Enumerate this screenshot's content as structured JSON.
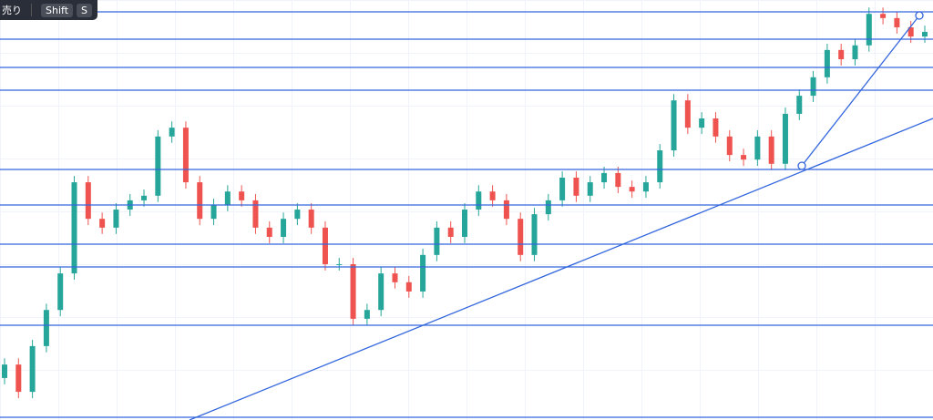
{
  "toolbar": {
    "label": "売り",
    "keys": [
      "Shift",
      "S"
    ]
  },
  "chart_data": {
    "type": "candlestick",
    "ylim": [
      0,
      100
    ],
    "up_color": "#26a69a",
    "down_color": "#ef5350",
    "candles": [
      [
        10.0,
        14.7,
        8.5,
        13.2
      ],
      [
        13.2,
        14.7,
        5.2,
        6.7
      ],
      [
        6.7,
        19.1,
        5.2,
        17.6
      ],
      [
        17.6,
        27.7,
        16.1,
        26.2
      ],
      [
        26.2,
        36.4,
        24.7,
        34.9
      ],
      [
        34.9,
        58.1,
        33.4,
        56.6
      ],
      [
        56.6,
        58.1,
        46.4,
        47.9
      ],
      [
        47.9,
        49.4,
        44.3,
        45.8
      ],
      [
        45.8,
        51.6,
        44.3,
        50.1
      ],
      [
        50.1,
        53.8,
        48.6,
        52.3
      ],
      [
        52.3,
        54.9,
        50.8,
        53.4
      ],
      [
        53.4,
        69.0,
        51.9,
        67.5
      ],
      [
        67.5,
        71.1,
        66.0,
        69.6
      ],
      [
        69.6,
        71.1,
        55.1,
        56.6
      ],
      [
        56.6,
        58.1,
        46.4,
        47.9
      ],
      [
        47.9,
        52.7,
        46.4,
        51.2
      ],
      [
        51.2,
        55.9,
        49.7,
        54.4
      ],
      [
        54.4,
        55.9,
        50.8,
        52.3
      ],
      [
        52.3,
        53.8,
        44.3,
        45.8
      ],
      [
        45.8,
        47.3,
        42.1,
        43.6
      ],
      [
        43.6,
        49.4,
        42.1,
        47.9
      ],
      [
        47.9,
        51.6,
        46.4,
        50.1
      ],
      [
        50.1,
        51.6,
        44.3,
        45.8
      ],
      [
        45.8,
        47.3,
        35.6,
        37.1
      ],
      [
        37.1,
        38.6,
        35.6,
        37.1
      ],
      [
        37.1,
        38.6,
        22.6,
        24.1
      ],
      [
        24.1,
        27.7,
        22.6,
        26.2
      ],
      [
        26.2,
        36.4,
        24.7,
        34.9
      ],
      [
        34.9,
        36.4,
        31.3,
        32.8
      ],
      [
        32.8,
        34.3,
        29.1,
        30.6
      ],
      [
        30.6,
        40.8,
        29.1,
        39.3
      ],
      [
        39.3,
        47.3,
        37.8,
        45.8
      ],
      [
        45.8,
        47.3,
        42.1,
        43.6
      ],
      [
        43.6,
        51.6,
        42.1,
        50.1
      ],
      [
        50.1,
        55.9,
        48.6,
        54.4
      ],
      [
        54.4,
        55.9,
        50.8,
        52.3
      ],
      [
        52.3,
        53.8,
        46.4,
        47.9
      ],
      [
        47.9,
        49.4,
        37.8,
        39.3
      ],
      [
        39.3,
        50.5,
        37.8,
        49.0
      ],
      [
        49.0,
        53.8,
        47.5,
        52.3
      ],
      [
        52.3,
        59.2,
        50.8,
        57.7
      ],
      [
        57.7,
        59.2,
        51.9,
        53.4
      ],
      [
        53.4,
        58.1,
        51.9,
        56.6
      ],
      [
        56.6,
        60.3,
        55.1,
        58.8
      ],
      [
        58.8,
        60.3,
        54.0,
        55.5
      ],
      [
        55.5,
        57.0,
        52.9,
        54.4
      ],
      [
        54.4,
        58.1,
        52.9,
        56.6
      ],
      [
        56.6,
        65.7,
        55.1,
        64.2
      ],
      [
        64.2,
        77.6,
        62.7,
        76.1
      ],
      [
        76.1,
        77.6,
        68.1,
        69.6
      ],
      [
        69.6,
        73.3,
        68.1,
        71.8
      ],
      [
        71.8,
        73.3,
        66.0,
        67.5
      ],
      [
        67.5,
        69.0,
        61.6,
        63.1
      ],
      [
        63.1,
        64.6,
        60.5,
        62.0
      ],
      [
        62.0,
        69.0,
        60.5,
        67.5
      ],
      [
        67.5,
        69.0,
        59.5,
        61.0
      ],
      [
        61.0,
        74.4,
        59.5,
        72.9
      ],
      [
        72.9,
        78.7,
        71.4,
        77.2
      ],
      [
        77.2,
        83.1,
        75.7,
        81.6
      ],
      [
        81.6,
        89.6,
        80.1,
        88.1
      ],
      [
        88.1,
        89.6,
        84.4,
        85.9
      ],
      [
        85.9,
        90.7,
        84.4,
        89.2
      ],
      [
        89.2,
        98.2,
        87.7,
        96.7
      ],
      [
        96.7,
        98.2,
        94.2,
        95.7
      ],
      [
        95.7,
        97.2,
        92.0,
        93.5
      ],
      [
        93.5,
        95.0,
        89.8,
        91.3
      ],
      [
        91.3,
        93.9,
        89.8,
        92.4
      ]
    ]
  }
}
